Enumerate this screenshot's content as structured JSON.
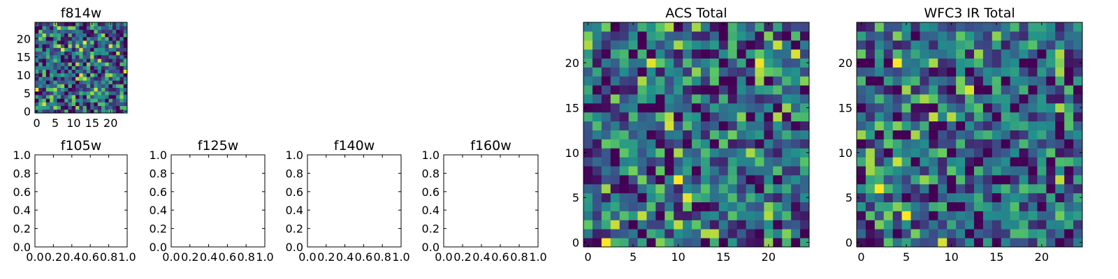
{
  "figure": {
    "title": ""
  },
  "colormap": [
    "#440154",
    "#3b528b",
    "#21918c",
    "#5ec962",
    "#fde725"
  ],
  "chart_data": [
    {
      "id": "f814w",
      "type": "heatmap",
      "title": "f814w",
      "grid": {
        "rows": 25,
        "cols": 25
      },
      "seed": 17,
      "x_ticks": [
        "0",
        "5",
        "10",
        "15",
        "20"
      ],
      "x_tick_values": [
        0,
        5,
        10,
        15,
        20
      ],
      "y_ticks": [
        "0",
        "5",
        "10",
        "15",
        "20"
      ],
      "y_tick_values": [
        0,
        5,
        10,
        15,
        20
      ],
      "xlim": [
        -0.5,
        24.5
      ],
      "ylim": [
        -0.5,
        24.5
      ]
    },
    {
      "id": "f105w",
      "type": "line",
      "title": "f105w",
      "series": [],
      "x_ticks": [
        "0.0",
        "0.2",
        "0.4",
        "0.6",
        "0.8",
        "1.0"
      ],
      "x_tick_values": [
        0,
        0.2,
        0.4,
        0.6,
        0.8,
        1.0
      ],
      "y_ticks": [
        "0.0",
        "0.2",
        "0.4",
        "0.6",
        "0.8",
        "1.0"
      ],
      "y_tick_values": [
        0,
        0.2,
        0.4,
        0.6,
        0.8,
        1.0
      ],
      "xlim": [
        0,
        1
      ],
      "ylim": [
        0,
        1
      ]
    },
    {
      "id": "f125w",
      "type": "line",
      "title": "f125w",
      "series": [],
      "x_ticks": [
        "0.0",
        "0.2",
        "0.4",
        "0.6",
        "0.8",
        "1.0"
      ],
      "x_tick_values": [
        0,
        0.2,
        0.4,
        0.6,
        0.8,
        1.0
      ],
      "y_ticks": [
        "0.0",
        "0.2",
        "0.4",
        "0.6",
        "0.8",
        "1.0"
      ],
      "y_tick_values": [
        0,
        0.2,
        0.4,
        0.6,
        0.8,
        1.0
      ],
      "xlim": [
        0,
        1
      ],
      "ylim": [
        0,
        1
      ]
    },
    {
      "id": "f140w",
      "type": "line",
      "title": "f140w",
      "series": [],
      "x_ticks": [
        "0.0",
        "0.2",
        "0.4",
        "0.6",
        "0.8",
        "1.0"
      ],
      "x_tick_values": [
        0,
        0.2,
        0.4,
        0.6,
        0.8,
        1.0
      ],
      "y_ticks": [
        "0.0",
        "0.2",
        "0.4",
        "0.6",
        "0.8",
        "1.0"
      ],
      "y_tick_values": [
        0,
        0.2,
        0.4,
        0.6,
        0.8,
        1.0
      ],
      "xlim": [
        0,
        1
      ],
      "ylim": [
        0,
        1
      ]
    },
    {
      "id": "f160w",
      "type": "line",
      "title": "f160w",
      "series": [],
      "x_ticks": [
        "0.0",
        "0.2",
        "0.4",
        "0.6",
        "0.8",
        "1.0"
      ],
      "x_tick_values": [
        0,
        0.2,
        0.4,
        0.6,
        0.8,
        1.0
      ],
      "y_ticks": [
        "0.0",
        "0.2",
        "0.4",
        "0.6",
        "0.8",
        "1.0"
      ],
      "y_tick_values": [
        0,
        0.2,
        0.4,
        0.6,
        0.8,
        1.0
      ],
      "xlim": [
        0,
        1
      ],
      "ylim": [
        0,
        1
      ]
    },
    {
      "id": "acs_total",
      "type": "heatmap",
      "title": "ACS Total",
      "grid": {
        "rows": 25,
        "cols": 25
      },
      "seed": 42,
      "x_ticks": [
        "0",
        "5",
        "10",
        "15",
        "20"
      ],
      "x_tick_values": [
        0,
        5,
        10,
        15,
        20
      ],
      "y_ticks": [
        "0",
        "5",
        "10",
        "15",
        "20"
      ],
      "y_tick_values": [
        0,
        5,
        10,
        15,
        20
      ],
      "xlim": [
        -0.5,
        24.5
      ],
      "ylim": [
        -0.5,
        24.5
      ]
    },
    {
      "id": "wfc3_ir_total",
      "type": "heatmap",
      "title": "WFC3 IR Total",
      "grid": {
        "rows": 25,
        "cols": 25
      },
      "seed": 91,
      "x_ticks": [
        "0",
        "5",
        "10",
        "15",
        "20"
      ],
      "x_tick_values": [
        0,
        5,
        10,
        15,
        20
      ],
      "y_ticks": [
        "0",
        "5",
        "10",
        "15",
        "20"
      ],
      "y_tick_values": [
        0,
        5,
        10,
        15,
        20
      ],
      "xlim": [
        -0.5,
        24.5
      ],
      "ylim": [
        -0.5,
        24.5
      ]
    }
  ]
}
